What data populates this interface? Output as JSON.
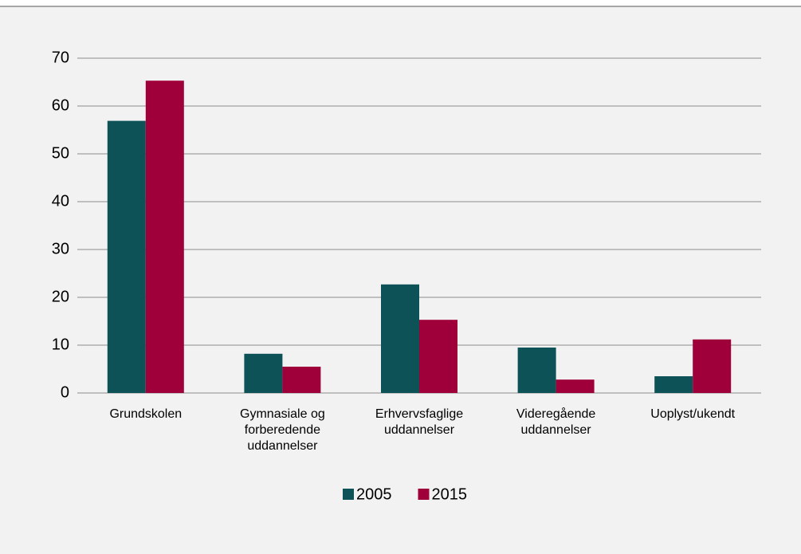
{
  "chart_data": {
    "type": "bar",
    "categories": [
      "Grundskolen",
      "Gymnasiale og forberedende uddannelser",
      "Erhvervsfaglige uddannelser",
      "Videregående uddannelser",
      "Uoplyst/ukendt"
    ],
    "series": [
      {
        "name": "2005",
        "color": "#0d5257",
        "values": [
          56.9,
          8.2,
          22.7,
          9.5,
          3.5
        ]
      },
      {
        "name": "2015",
        "color": "#a0003a",
        "values": [
          65.3,
          5.5,
          15.3,
          2.8,
          11.2
        ]
      }
    ],
    "ylim": [
      0,
      70
    ],
    "yticks": [
      0,
      10,
      20,
      30,
      40,
      50,
      60,
      70
    ],
    "grid": true,
    "legend": "bottom"
  }
}
